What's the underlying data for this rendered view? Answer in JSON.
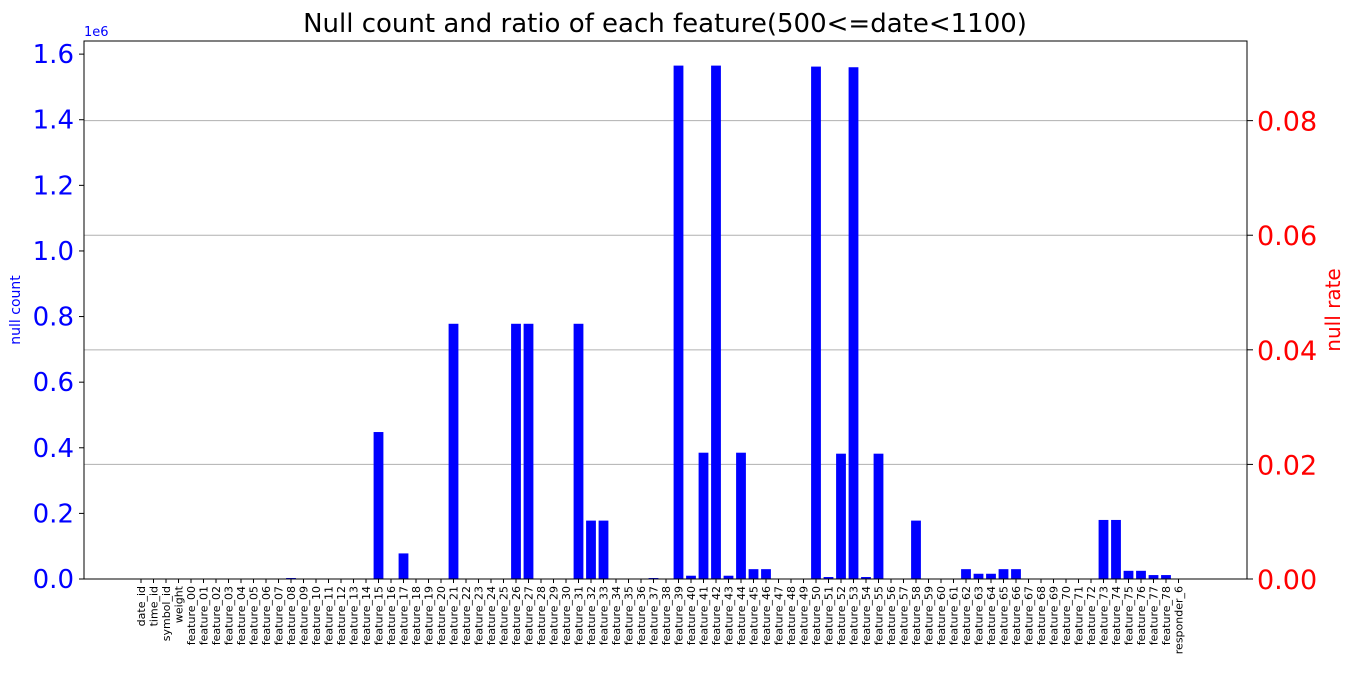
{
  "chart_data": {
    "type": "bar",
    "title": "Null count and ratio of each feature(500<=date<1100)",
    "ylabel_left": "null count",
    "ylabel_right": "null rate",
    "left_axis_offset_text": "1e6",
    "left_axis_color": "#0000ff",
    "right_axis_color": "#ff0000",
    "bar_color": "#0000ff",
    "grid": "horizontal, right axis",
    "ylim_left": [
      0,
      1.64
    ],
    "ylim_right": [
      0,
      0.0939
    ],
    "left_ticks": [
      {
        "value": 0.0,
        "label": "0.0"
      },
      {
        "value": 0.2,
        "label": "0.2"
      },
      {
        "value": 0.4,
        "label": "0.4"
      },
      {
        "value": 0.6,
        "label": "0.6"
      },
      {
        "value": 0.8,
        "label": "0.8"
      },
      {
        "value": 1.0,
        "label": "1.0"
      },
      {
        "value": 1.2,
        "label": "1.2"
      },
      {
        "value": 1.4,
        "label": "1.4"
      },
      {
        "value": 1.6,
        "label": "1.6"
      }
    ],
    "right_ticks": [
      {
        "value": 0.0,
        "label": "0.00"
      },
      {
        "value": 0.02,
        "label": "0.02"
      },
      {
        "value": 0.04,
        "label": "0.04"
      },
      {
        "value": 0.06,
        "label": "0.06"
      },
      {
        "value": 0.08,
        "label": "0.08"
      }
    ],
    "categories": [
      "date_id",
      "time_id",
      "symbol_id",
      "weight",
      "feature_00",
      "feature_01",
      "feature_02",
      "feature_03",
      "feature_04",
      "feature_05",
      "feature_06",
      "feature_07",
      "feature_08",
      "feature_09",
      "feature_10",
      "feature_11",
      "feature_12",
      "feature_13",
      "feature_14",
      "feature_15",
      "feature_16",
      "feature_17",
      "feature_18",
      "feature_19",
      "feature_20",
      "feature_21",
      "feature_22",
      "feature_23",
      "feature_24",
      "feature_25",
      "feature_26",
      "feature_27",
      "feature_28",
      "feature_29",
      "feature_30",
      "feature_31",
      "feature_32",
      "feature_33",
      "feature_34",
      "feature_35",
      "feature_36",
      "feature_37",
      "feature_38",
      "feature_39",
      "feature_40",
      "feature_41",
      "feature_42",
      "feature_43",
      "feature_44",
      "feature_45",
      "feature_46",
      "feature_47",
      "feature_48",
      "feature_49",
      "feature_50",
      "feature_51",
      "feature_52",
      "feature_53",
      "feature_54",
      "feature_55",
      "feature_56",
      "feature_57",
      "feature_58",
      "feature_59",
      "feature_60",
      "feature_61",
      "feature_62",
      "feature_63",
      "feature_64",
      "feature_65",
      "feature_66",
      "feature_67",
      "feature_68",
      "feature_69",
      "feature_70",
      "feature_71",
      "feature_72",
      "feature_73",
      "feature_74",
      "feature_75",
      "feature_76",
      "feature_77",
      "feature_78",
      "responder_6"
    ],
    "values_millions": [
      0,
      0,
      0,
      0,
      0,
      0,
      0,
      0,
      0,
      0,
      0,
      0,
      0.003,
      0,
      0,
      0,
      0,
      0,
      0,
      0.448,
      0,
      0.078,
      0,
      0,
      0,
      0.778,
      0,
      0,
      0,
      0,
      0.778,
      0.778,
      0,
      0,
      0,
      0.778,
      0.178,
      0.178,
      0,
      0,
      0,
      0.003,
      0,
      1.565,
      0.01,
      0.385,
      1.565,
      0.01,
      0.385,
      0.03,
      0.03,
      0,
      0,
      0,
      1.562,
      0.006,
      0.382,
      1.56,
      0.006,
      0.382,
      0,
      0,
      0.178,
      0,
      0,
      0,
      0.03,
      0.016,
      0.016,
      0.03,
      0.03,
      0,
      0,
      0,
      0,
      0,
      0,
      0.18,
      0.18,
      0.025,
      0.025,
      0.012,
      0.012,
      0
    ]
  }
}
